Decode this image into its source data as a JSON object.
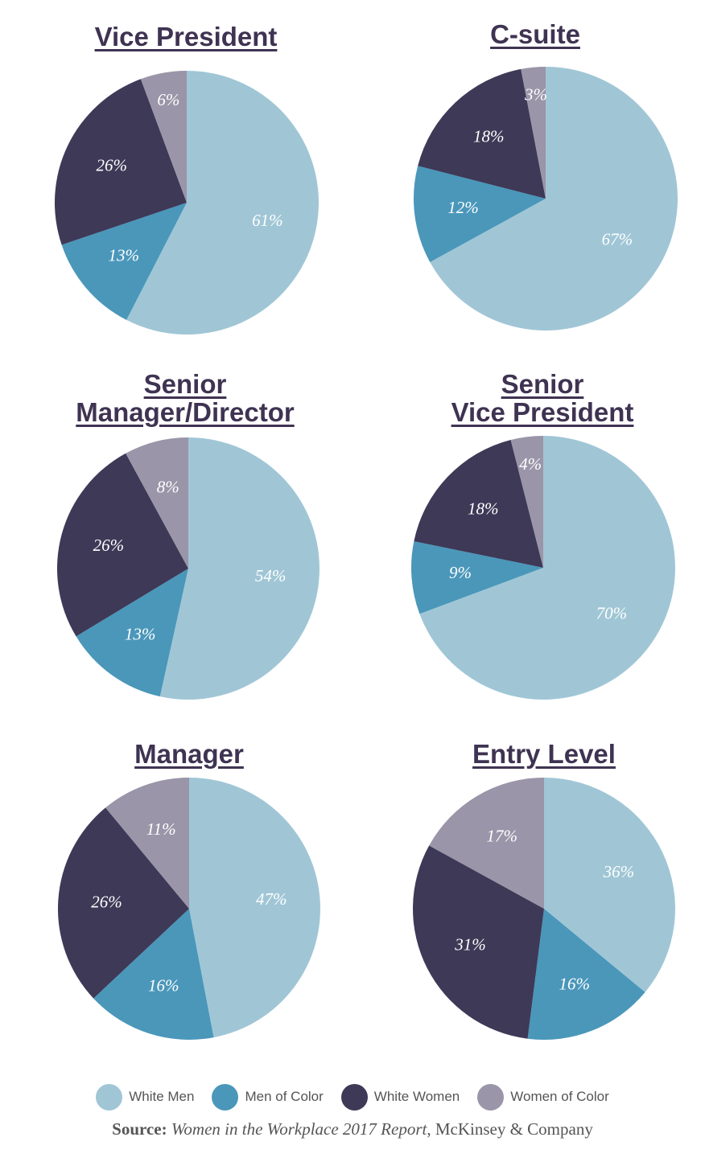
{
  "colors": {
    "white_men": "#a0c6d6",
    "men_of_color": "#4a97ba",
    "white_women": "#3d3957",
    "women_of_color": "#9a95a8",
    "title": "#3f3352"
  },
  "legend": [
    {
      "label": "White Men",
      "color": "#a0c6d6"
    },
    {
      "label": "Men of Color",
      "color": "#4a97ba"
    },
    {
      "label": "White Women",
      "color": "#3d3957"
    },
    {
      "label": "Women of Color",
      "color": "#9a95a8"
    }
  ],
  "source": {
    "prefix": "Source:",
    "title": "Women in the Workplace 2017 Report",
    "suffix": ", McKinsey & Company"
  },
  "chart_data": [
    {
      "type": "pie",
      "title_lines": [
        "Vice President"
      ],
      "categories": [
        "White Men",
        "Men of Color",
        "White Women",
        "Women of Color"
      ],
      "values": [
        61,
        13,
        26,
        6
      ],
      "labels": [
        "61%",
        "13%",
        "26%",
        "6%"
      ]
    },
    {
      "type": "pie",
      "title_lines": [
        "C-suite"
      ],
      "categories": [
        "White Men",
        "Men of Color",
        "White Women",
        "Women of Color"
      ],
      "values": [
        67,
        12,
        18,
        3
      ],
      "labels": [
        "67%",
        "12%",
        "18%",
        "3%"
      ]
    },
    {
      "type": "pie",
      "title_lines": [
        "Senior",
        "Manager/Director"
      ],
      "categories": [
        "White Men",
        "Men of Color",
        "White Women",
        "Women of Color"
      ],
      "values": [
        54,
        13,
        26,
        8
      ],
      "labels": [
        "54%",
        "13%",
        "26%",
        "8%"
      ]
    },
    {
      "type": "pie",
      "title_lines": [
        "Senior",
        "Vice President"
      ],
      "categories": [
        "White Men",
        "Men of Color",
        "White Women",
        "Women of Color"
      ],
      "values": [
        70,
        9,
        18,
        4
      ],
      "labels": [
        "70%",
        "9%",
        "18%",
        "4%"
      ]
    },
    {
      "type": "pie",
      "title_lines": [
        "Manager"
      ],
      "categories": [
        "White Men",
        "Men of Color",
        "White Women",
        "Women of Color"
      ],
      "values": [
        47,
        16,
        26,
        11
      ],
      "labels": [
        "47%",
        "16%",
        "26%",
        "11%"
      ]
    },
    {
      "type": "pie",
      "title_lines": [
        "Entry Level"
      ],
      "categories": [
        "White Men",
        "Men of Color",
        "White Women",
        "Women of Color"
      ],
      "values": [
        36,
        16,
        31,
        17
      ],
      "labels": [
        "36%",
        "16%",
        "31%",
        "17%"
      ]
    }
  ]
}
